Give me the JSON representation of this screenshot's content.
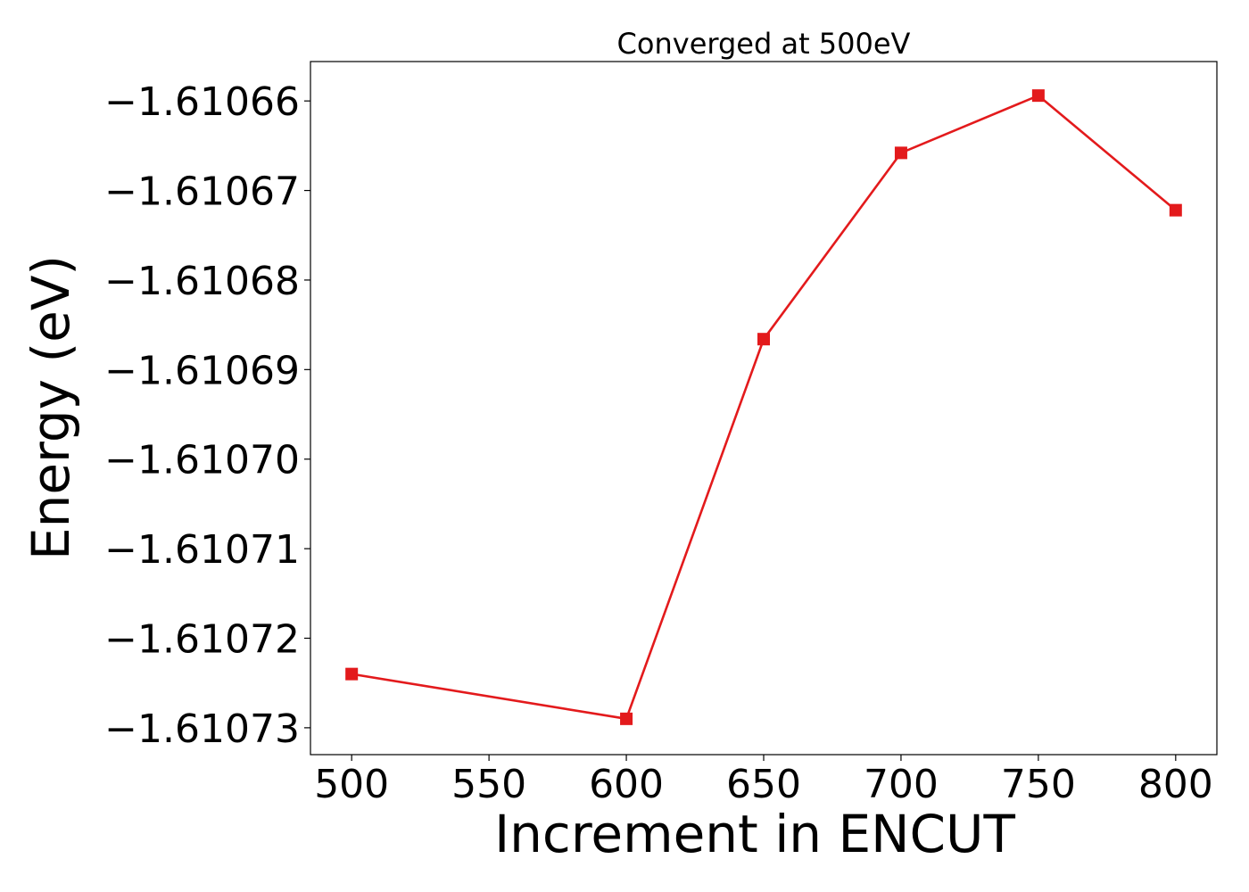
{
  "chart_data": {
    "type": "line",
    "title": "Converged at 500eV",
    "xlabel": "Increment in ENCUT",
    "ylabel": "Energy (eV)",
    "x": [
      500,
      600,
      650,
      700,
      750,
      800
    ],
    "series": [
      {
        "values": [
          -1.610724,
          -1.610729,
          -1.6106866,
          -1.6106658,
          -1.6106594,
          -1.6106722
        ],
        "color": "#e31a1c",
        "marker": "square"
      }
    ],
    "xlim": [
      485,
      815
    ],
    "ylim": [
      -1.610733,
      -1.6106556
    ],
    "xticks": [
      500,
      550,
      600,
      650,
      700,
      750,
      800
    ],
    "xtick_labels": [
      "500",
      "550",
      "600",
      "650",
      "700",
      "750",
      "800"
    ],
    "yticks": [
      -1.61066,
      -1.61067,
      -1.61068,
      -1.61069,
      -1.6107,
      -1.61071,
      -1.61072,
      -1.61073
    ],
    "ytick_labels": [
      "−1.61066",
      "−1.61067",
      "−1.61068",
      "−1.61069",
      "−1.61070",
      "−1.61071",
      "−1.61072",
      "−1.61073"
    ],
    "grid": false,
    "legend": "none"
  }
}
